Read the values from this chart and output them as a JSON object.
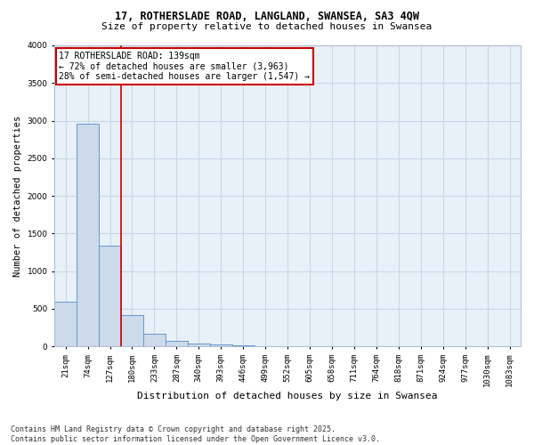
{
  "title1": "17, ROTHERSLADE ROAD, LANGLAND, SWANSEA, SA3 4QW",
  "title2": "Size of property relative to detached houses in Swansea",
  "xlabel": "Distribution of detached houses by size in Swansea",
  "ylabel": "Number of detached properties",
  "footer1": "Contains HM Land Registry data © Crown copyright and database right 2025.",
  "footer2": "Contains public sector information licensed under the Open Government Licence v3.0.",
  "annotation_line1": "17 ROTHERSLADE ROAD: 139sqm",
  "annotation_line2": "← 72% of detached houses are smaller (3,963)",
  "annotation_line3": "28% of semi-detached houses are larger (1,547) →",
  "bar_color": "#ccdaea",
  "bar_edge_color": "#6699cc",
  "vline_color": "#cc0000",
  "vline_x": 2.5,
  "categories": [
    "21sqm",
    "74sqm",
    "127sqm",
    "180sqm",
    "233sqm",
    "287sqm",
    "340sqm",
    "393sqm",
    "446sqm",
    "499sqm",
    "552sqm",
    "605sqm",
    "658sqm",
    "711sqm",
    "764sqm",
    "818sqm",
    "871sqm",
    "924sqm",
    "977sqm",
    "1030sqm",
    "1083sqm"
  ],
  "values": [
    590,
    2960,
    1340,
    420,
    165,
    70,
    40,
    20,
    10,
    5,
    4,
    3,
    2,
    1,
    1,
    1,
    0,
    0,
    0,
    0,
    0
  ],
  "ylim": [
    0,
    4000
  ],
  "yticks": [
    0,
    500,
    1000,
    1500,
    2000,
    2500,
    3000,
    3500,
    4000
  ],
  "grid_color": "#c8d8e8",
  "bg_color": "#e8f0f8",
  "title_fontsize": 8.5,
  "subtitle_fontsize": 8.0,
  "ylabel_fontsize": 7.5,
  "xlabel_fontsize": 8.0,
  "tick_fontsize": 6.5,
  "annotation_fontsize": 7.0,
  "footer_fontsize": 6.0
}
